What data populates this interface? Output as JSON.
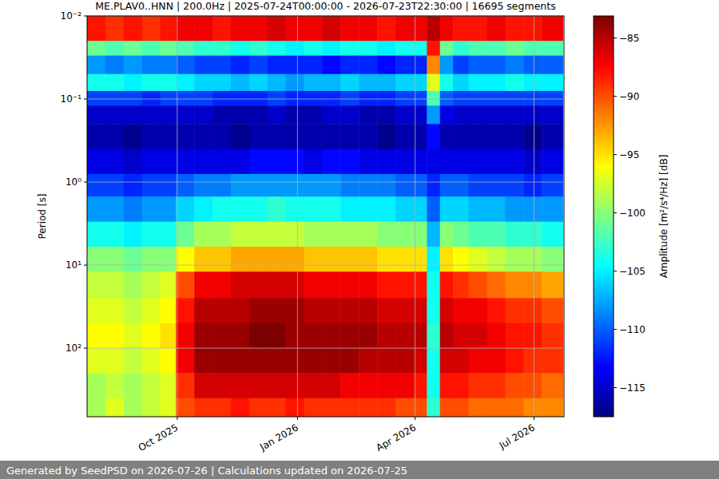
{
  "chart_data": {
    "type": "heatmap",
    "title": "ME.PLAV0..HNN | 200.0Hz | 2025-07-24T00:00:00 - 2026-07-23T22:30:00 | 16695 segments",
    "y_label": "Period [s]",
    "footer": "Generated by SeedPSD on 2026-07-26 | Calculations updated on 2026-07-25",
    "log": "y",
    "grid": true,
    "color": "jet",
    "xlim": [
      "2025-07-24T00:00:00",
      "2026-07-23T22:30:00"
    ],
    "xticks": [
      {
        "value": "2025-10-01",
        "label": "Oct 2025"
      },
      {
        "value": "2026-01-01",
        "label": "Jan 2026"
      },
      {
        "value": "2026-04-01",
        "label": "Apr 2026"
      },
      {
        "value": "2026-07-01",
        "label": "Jul 2026"
      }
    ],
    "ylim": [
      670,
      0.01
    ],
    "yticks": [
      {
        "value": 0.01,
        "label": "10⁻²"
      },
      {
        "value": 0.1,
        "label": "10⁻¹"
      },
      {
        "value": 1,
        "label": "10⁰"
      },
      {
        "value": 10,
        "label": "10¹"
      },
      {
        "value": 100,
        "label": "10²"
      }
    ],
    "time_edges": [
      "2025-07-24",
      "2025-08-07",
      "2025-08-21",
      "2025-09-04",
      "2025-09-18",
      "2025-09-30",
      "2025-10-14",
      "2025-10-28",
      "2025-11-11",
      "2025-11-25",
      "2025-12-09",
      "2025-12-23",
      "2026-01-06",
      "2026-01-20",
      "2026-02-03",
      "2026-02-17",
      "2026-03-03",
      "2026-03-17",
      "2026-03-31",
      "2026-04-10",
      "2026-04-20",
      "2026-04-30",
      "2026-05-12",
      "2026-05-26",
      "2026-06-09",
      "2026-06-23",
      "2026-07-07",
      "2026-07-23"
    ],
    "period_edges": [
      0.01,
      0.02,
      0.03,
      0.05,
      0.08,
      0.12,
      0.2,
      0.4,
      0.8,
      1.5,
      3,
      6,
      12,
      25,
      50,
      100,
      200,
      400,
      670
    ],
    "cells": [
      [
        -88,
        -89,
        -88,
        -89,
        -88,
        -87,
        -87,
        -88,
        -87,
        -87,
        -86,
        -87,
        -87,
        -86,
        -87,
        -87,
        -88,
        -87,
        -87,
        -85,
        -87,
        -88,
        -88,
        -87,
        -88,
        -88,
        -87
      ],
      [
        -101,
        -102,
        -101,
        -102,
        -101,
        -102,
        -103,
        -103,
        -104,
        -103,
        -104,
        -105,
        -104,
        -105,
        -104,
        -104,
        -105,
        -104,
        -104,
        -88,
        -101,
        -103,
        -102,
        -102,
        -101,
        -102,
        -102
      ],
      [
        -108,
        -109,
        -108,
        -109,
        -109,
        -110,
        -111,
        -111,
        -112,
        -111,
        -112,
        -112,
        -112,
        -113,
        -112,
        -112,
        -113,
        -112,
        -112,
        -92,
        -108,
        -111,
        -110,
        -110,
        -109,
        -110,
        -110
      ],
      [
        -104,
        -104,
        -105,
        -104,
        -104,
        -105,
        -106,
        -106,
        -107,
        -106,
        -107,
        -108,
        -107,
        -107,
        -106,
        -107,
        -107,
        -106,
        -106,
        -97,
        -104,
        -106,
        -105,
        -105,
        -104,
        -105,
        -105
      ],
      [
        -111,
        -111,
        -111,
        -112,
        -111,
        -111,
        -111,
        -112,
        -112,
        -112,
        -111,
        -112,
        -112,
        -112,
        -111,
        -112,
        -112,
        -111,
        -111,
        -102,
        -110,
        -111,
        -111,
        -111,
        -111,
        -111,
        -111
      ],
      [
        -115,
        -115,
        -115,
        -115,
        -115,
        -115,
        -115,
        -116,
        -116,
        -116,
        -115,
        -116,
        -116,
        -115,
        -115,
        -116,
        -116,
        -115,
        -115,
        -108,
        -114,
        -115,
        -115,
        -115,
        -115,
        -115,
        -115
      ],
      [
        -116,
        -116,
        -117,
        -116,
        -116,
        -116,
        -116,
        -116,
        -117,
        -116,
        -116,
        -116,
        -116,
        -116,
        -116,
        -116,
        -117,
        -116,
        -116,
        -113,
        -116,
        -116,
        -116,
        -116,
        -116,
        -117,
        -116
      ],
      [
        -114,
        -114,
        -115,
        -114,
        -114,
        -114,
        -114,
        -114,
        -114,
        -113,
        -113,
        -113,
        -114,
        -113,
        -113,
        -114,
        -114,
        -114,
        -114,
        -114,
        -114,
        -114,
        -114,
        -114,
        -114,
        -115,
        -114
      ],
      [
        -111,
        -111,
        -112,
        -111,
        -111,
        -110,
        -109,
        -109,
        -108,
        -108,
        -108,
        -108,
        -108,
        -108,
        -109,
        -109,
        -109,
        -110,
        -110,
        -112,
        -110,
        -110,
        -111,
        -111,
        -111,
        -112,
        -111
      ],
      [
        -108,
        -108,
        -109,
        -108,
        -108,
        -106,
        -105,
        -104,
        -104,
        -104,
        -103,
        -104,
        -104,
        -104,
        -105,
        -105,
        -105,
        -106,
        -106,
        -110,
        -106,
        -106,
        -107,
        -107,
        -108,
        -108,
        -108
      ],
      [
        -104,
        -104,
        -105,
        -104,
        -104,
        -101,
        -99,
        -99,
        -98,
        -98,
        -98,
        -98,
        -99,
        -99,
        -99,
        -99,
        -100,
        -100,
        -100,
        -107,
        -100,
        -101,
        -102,
        -102,
        -103,
        -103,
        -104
      ],
      [
        -100,
        -100,
        -101,
        -100,
        -100,
        -96,
        -94,
        -94,
        -93,
        -93,
        -93,
        -93,
        -94,
        -94,
        -94,
        -94,
        -95,
        -95,
        -95,
        -105,
        -95,
        -96,
        -97,
        -98,
        -99,
        -99,
        -100
      ],
      [
        -98,
        -98,
        -99,
        -98,
        -97,
        -90,
        -87,
        -87,
        -86,
        -86,
        -86,
        -86,
        -87,
        -87,
        -87,
        -87,
        -88,
        -88,
        -88,
        -104,
        -88,
        -89,
        -90,
        -91,
        -92,
        -92,
        -93
      ],
      [
        -97,
        -97,
        -98,
        -97,
        -96,
        -88,
        -85,
        -85,
        -85,
        -84,
        -84,
        -84,
        -85,
        -85,
        -85,
        -85,
        -86,
        -86,
        -86,
        -104,
        -86,
        -87,
        -87,
        -88,
        -89,
        -89,
        -90
      ],
      [
        -96,
        -96,
        -97,
        -96,
        -95,
        -87,
        -84,
        -84,
        -84,
        -83,
        -83,
        -84,
        -84,
        -84,
        -84,
        -84,
        -85,
        -85,
        -85,
        -103,
        -85,
        -86,
        -86,
        -87,
        -88,
        -88,
        -89
      ],
      [
        -97,
        -97,
        -98,
        -97,
        -96,
        -87,
        -84,
        -84,
        -84,
        -84,
        -84,
        -84,
        -84,
        -84,
        -84,
        -85,
        -85,
        -85,
        -86,
        -104,
        -86,
        -86,
        -87,
        -87,
        -88,
        -89,
        -89
      ],
      [
        -99,
        -98,
        -99,
        -98,
        -97,
        -89,
        -86,
        -86,
        -86,
        -86,
        -86,
        -86,
        -86,
        -86,
        -87,
        -87,
        -87,
        -87,
        -88,
        -104,
        -88,
        -88,
        -89,
        -89,
        -90,
        -90,
        -91
      ],
      [
        -99,
        -97,
        -99,
        -98,
        -97,
        -90,
        -89,
        -89,
        -88,
        -89,
        -89,
        -88,
        -89,
        -89,
        -89,
        -89,
        -89,
        -90,
        -90,
        -103,
        -90,
        -90,
        -91,
        -91,
        -91,
        -92,
        -92
      ]
    ],
    "colorbar": {
      "label": "Amplitude [m²/s⁴/Hz] [dB]",
      "range": [
        -117.5,
        -83.1
      ],
      "ticks": [
        {
          "value": -85,
          "label": "−85"
        },
        {
          "value": -90,
          "label": "−90"
        },
        {
          "value": -95,
          "label": "−95"
        },
        {
          "value": -100,
          "label": "−100"
        },
        {
          "value": -105,
          "label": "−105"
        },
        {
          "value": -110,
          "label": "−110"
        },
        {
          "value": -115,
          "label": "−115"
        }
      ]
    }
  }
}
